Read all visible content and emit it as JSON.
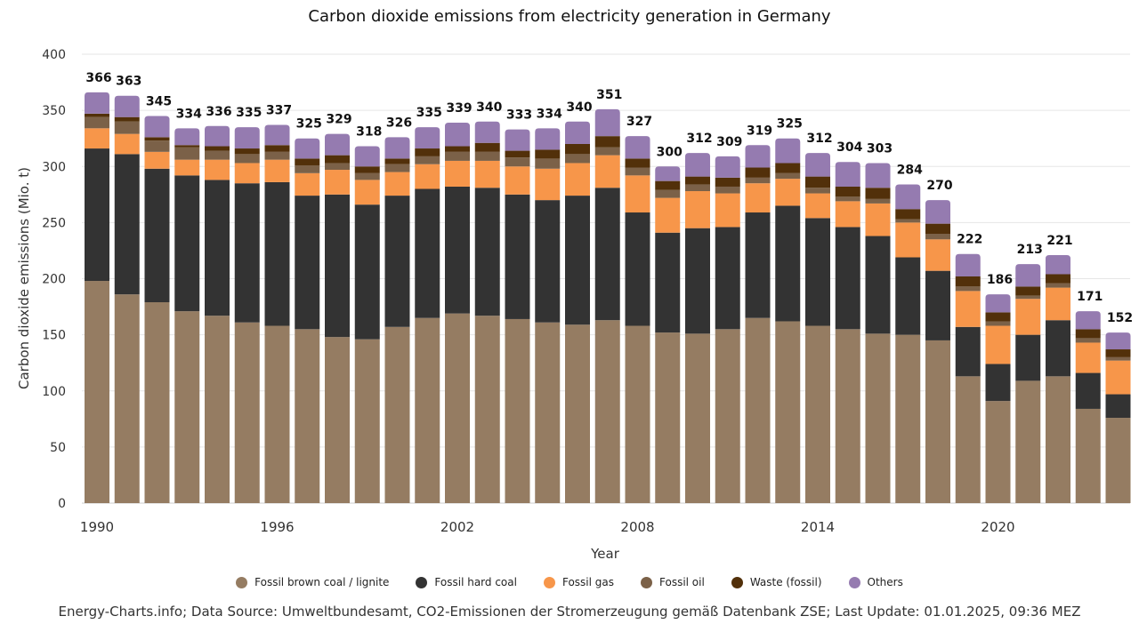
{
  "chart_data": {
    "type": "bar",
    "stacked": true,
    "title": "Carbon dioxide emissions from electricity generation in Germany",
    "xlabel": "Year",
    "ylabel": "Carbon dioxide emissions (Mio. t)",
    "ylim": [
      0,
      400
    ],
    "yticks": [
      0,
      50,
      100,
      150,
      200,
      250,
      300,
      350,
      400
    ],
    "xticks": [
      "1990",
      "1996",
      "2002",
      "2008",
      "2014",
      "2020"
    ],
    "grid": true,
    "legend_position": "bottom",
    "categories": [
      "1990",
      "1991",
      "1992",
      "1993",
      "1994",
      "1995",
      "1996",
      "1997",
      "1998",
      "1999",
      "2000",
      "2001",
      "2002",
      "2003",
      "2004",
      "2005",
      "2006",
      "2007",
      "2008",
      "2009",
      "2010",
      "2011",
      "2012",
      "2013",
      "2014",
      "2015",
      "2016",
      "2017",
      "2018",
      "2019",
      "2020",
      "2021",
      "2022",
      "2023",
      "2024"
    ],
    "series": [
      {
        "name": "Fossil brown coal / lignite",
        "color": "#957c62",
        "values": [
          198,
          186,
          179,
          171,
          167,
          161,
          158,
          155,
          148,
          146,
          157,
          165,
          169,
          167,
          164,
          161,
          159,
          163,
          158,
          152,
          151,
          155,
          165,
          162,
          158,
          155,
          151,
          150,
          145,
          113,
          91,
          109,
          113,
          84,
          76
        ]
      },
      {
        "name": "Fossil hard coal",
        "color": "#333333",
        "values": [
          118,
          125,
          119,
          121,
          121,
          124,
          128,
          119,
          127,
          120,
          117,
          115,
          113,
          114,
          111,
          109,
          115,
          118,
          101,
          89,
          94,
          91,
          94,
          103,
          96,
          91,
          87,
          69,
          62,
          44,
          33,
          41,
          50,
          32,
          21
        ]
      },
      {
        "name": "Fossil gas",
        "color": "#f7964a",
        "values": [
          18,
          18,
          15,
          14,
          18,
          18,
          20,
          20,
          22,
          22,
          21,
          22,
          23,
          24,
          25,
          28,
          29,
          29,
          33,
          31,
          33,
          30,
          26,
          24,
          22,
          23,
          29,
          31,
          28,
          32,
          34,
          32,
          29,
          27,
          30
        ]
      },
      {
        "name": "Fossil oil",
        "color": "#7b6148",
        "values": [
          10,
          11,
          10,
          11,
          8,
          8,
          7,
          7,
          6,
          6,
          7,
          7,
          8,
          8,
          8,
          9,
          8,
          7,
          7,
          7,
          6,
          6,
          5,
          5,
          5,
          4,
          4,
          3,
          5,
          4,
          4,
          3,
          4,
          4,
          3
        ]
      },
      {
        "name": "Waste (fossil)",
        "color": "#52300a",
        "values": [
          3,
          4,
          3,
          2,
          4,
          5,
          6,
          6,
          7,
          6,
          5,
          7,
          5,
          8,
          6,
          8,
          9,
          10,
          8,
          8,
          7,
          8,
          9,
          9,
          10,
          9,
          10,
          9,
          9,
          9,
          8,
          8,
          8,
          8,
          7
        ]
      },
      {
        "name": "Others",
        "color": "#957bb0",
        "values": [
          19,
          19,
          19,
          15,
          18,
          19,
          18,
          18,
          19,
          18,
          19,
          19,
          21,
          19,
          19,
          19,
          20,
          24,
          20,
          13,
          21,
          19,
          20,
          22,
          21,
          22,
          22,
          22,
          21,
          20,
          16,
          20,
          17,
          16,
          15
        ]
      }
    ],
    "data_labels": [
      "366",
      "363",
      "345",
      "334",
      "336",
      "335",
      "337",
      "325",
      "329",
      "318",
      "326",
      "335",
      "339",
      "340",
      "333",
      "334",
      "340",
      "351",
      "327",
      "300",
      "312",
      "309",
      "319",
      "325",
      "312",
      "304",
      "303",
      "284",
      "270",
      "222",
      "186",
      "213",
      "221",
      "171",
      "152"
    ]
  },
  "footer": {
    "source": "Energy-Charts.info; Data Source: Umweltbundesamt, CO2-Emissionen der Stromerzeugung gemäß Datenbank ZSE; Last Update: 01.01.2025, 09:36 MEZ"
  }
}
